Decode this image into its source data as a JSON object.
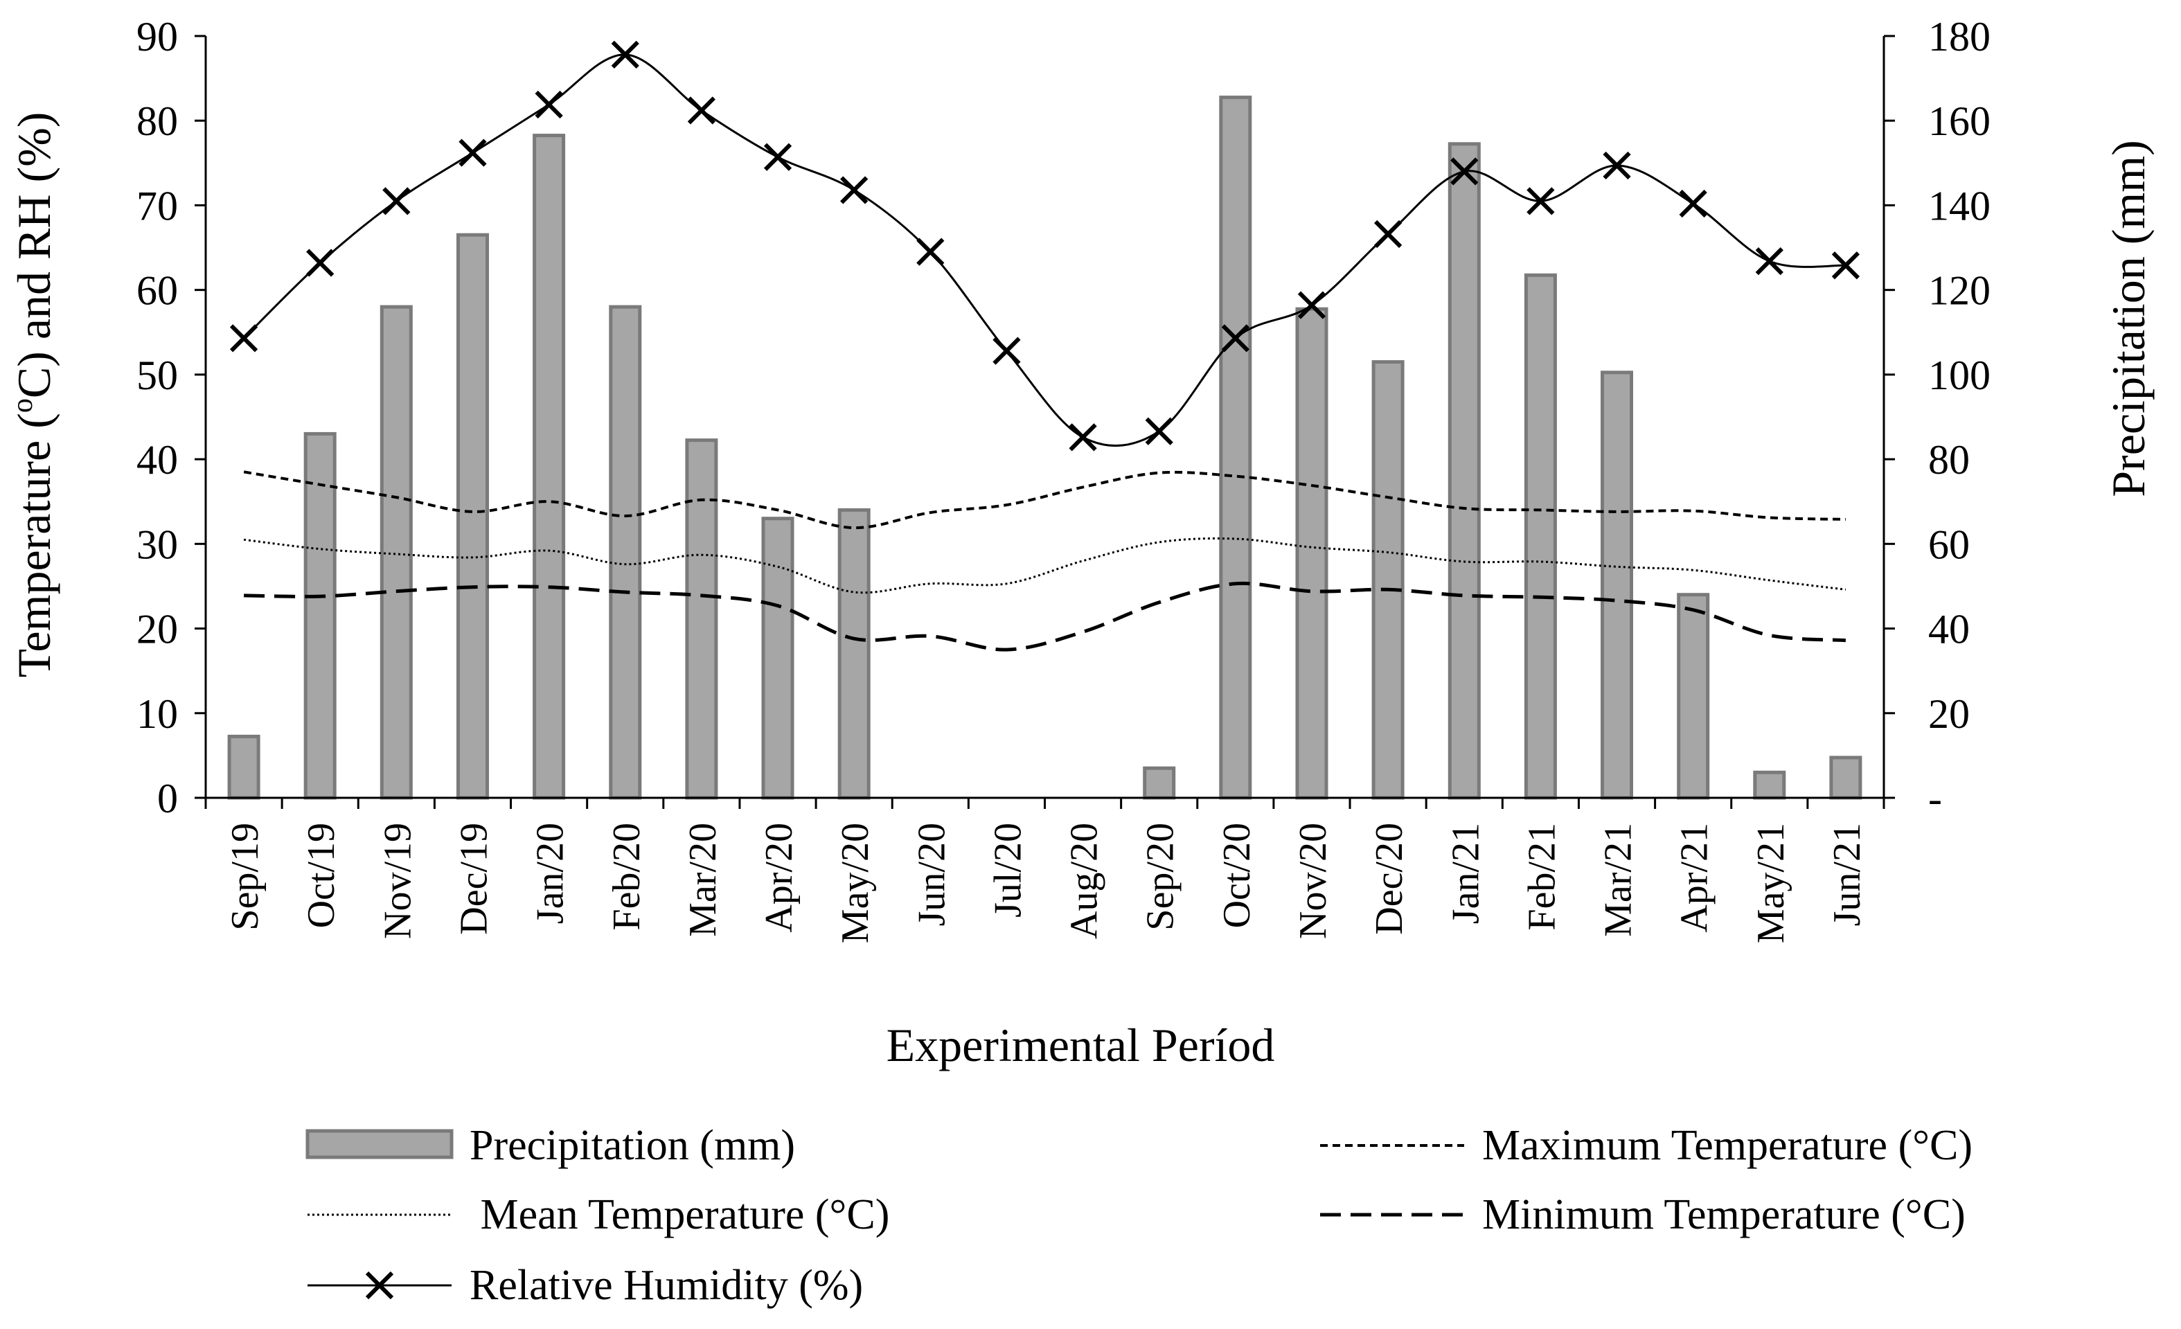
{
  "chart_data": {
    "type": "bar+line",
    "xlabel": "Experimental Períod",
    "ylabel_left": "Temperature (ºC) and RH (%)",
    "ylabel_left_parts": {
      "a": "Temperature (",
      "sup": "o",
      "b": "C) and RH (%)"
    },
    "ylabel_right": "Precipitation (mm)",
    "ylim_left": [
      0,
      90
    ],
    "yticks_left": [
      "0",
      "10",
      "20",
      "30",
      "40",
      "50",
      "60",
      "70",
      "80",
      "90"
    ],
    "ylim_right": [
      0,
      180
    ],
    "yticks_right": [
      "-",
      "20",
      "40",
      "60",
      "80",
      "100",
      "120",
      "140",
      "160",
      "180"
    ],
    "categories": [
      "Sep/19",
      "Oct/19",
      "Nov/19",
      "Dec/19",
      "Jan/20",
      "Feb/20",
      "Mar/20",
      "Apr/20",
      "May/20",
      "Jun/20",
      "Jul/20",
      "Aug/20",
      "Sep/20",
      "Oct/20",
      "Nov/20",
      "Dec/20",
      "Jan/21",
      "Feb/21",
      "Mar/21",
      "Apr/21",
      "May/21",
      "Jun/21"
    ],
    "series": [
      {
        "name": "Precipitation (mm)",
        "type": "bar",
        "axis": "right",
        "values": [
          14.5,
          86,
          116,
          133,
          156.5,
          116,
          84.5,
          66,
          68,
          0,
          0,
          0,
          7,
          165.5,
          115.5,
          103,
          154.5,
          123.5,
          100.5,
          48,
          6,
          9.5
        ]
      },
      {
        "name": "Maximum Temperature (°C)",
        "type": "line",
        "style": "short-dash",
        "axis": "left",
        "values": [
          38.5,
          37,
          35.5,
          33.8,
          35,
          33.3,
          35.2,
          34,
          31.9,
          33.7,
          34.6,
          36.7,
          38.4,
          38,
          36.9,
          35.5,
          34.2,
          34,
          33.8,
          33.9,
          33.1,
          32.9
        ]
      },
      {
        "name": " Mean Temperature (°C)",
        "type": "line",
        "style": "dotted",
        "axis": "left",
        "values": [
          30.5,
          29.4,
          28.8,
          28.4,
          29.2,
          27.6,
          28.7,
          27.3,
          24.3,
          25.3,
          25.3,
          28,
          30.2,
          30.6,
          29.6,
          29,
          27.9,
          27.9,
          27.3,
          26.9,
          25.7,
          24.6
        ]
      },
      {
        "name": "Minimum Temperature (°C)",
        "type": "line",
        "style": "long-dash",
        "axis": "left",
        "values": [
          23.9,
          23.8,
          24.4,
          24.9,
          24.9,
          24.3,
          23.9,
          22.7,
          18.8,
          19.1,
          17.5,
          19.6,
          23.1,
          25.3,
          24.4,
          24.6,
          23.9,
          23.7,
          23.3,
          22.2,
          19.2,
          18.6
        ]
      },
      {
        "name": "Relative Humidity (%)",
        "type": "line",
        "style": "solid-x",
        "axis": "left",
        "values": [
          54.3,
          63.2,
          70.5,
          76.2,
          81.9,
          87.8,
          81.2,
          75.7,
          71.8,
          64.5,
          52.8,
          42.6,
          43.3,
          54.3,
          58.2,
          66.6,
          74,
          70.5,
          74.7,
          70.2,
          63.4,
          62.9
        ]
      }
    ],
    "legend_position": "bottom"
  },
  "colors": {
    "bar_fill": "#a6a6a6",
    "bar_stroke": "#7a7a7a",
    "line": "#000000",
    "axis": "#000000",
    "background": "#ffffff"
  }
}
